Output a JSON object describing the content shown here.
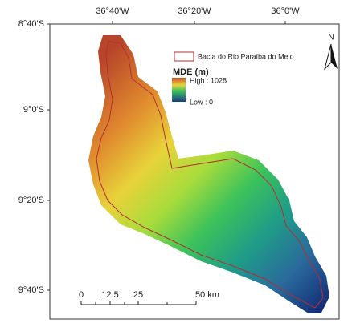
{
  "map": {
    "lon_labels": [
      "36°40'W",
      "36°20'W",
      "36°0'W"
    ],
    "lat_labels": [
      "8°40'S",
      "9°0'S",
      "9°20'S",
      "9°40'S"
    ],
    "legend": {
      "boundary": "Bacia do Rio Paraíba do Meio",
      "title": "MDE (m)",
      "high": "High : 1028",
      "low": "Low : 0"
    },
    "north": "N",
    "scale": [
      "0",
      "12.5",
      "25",
      "50 km"
    ]
  }
}
